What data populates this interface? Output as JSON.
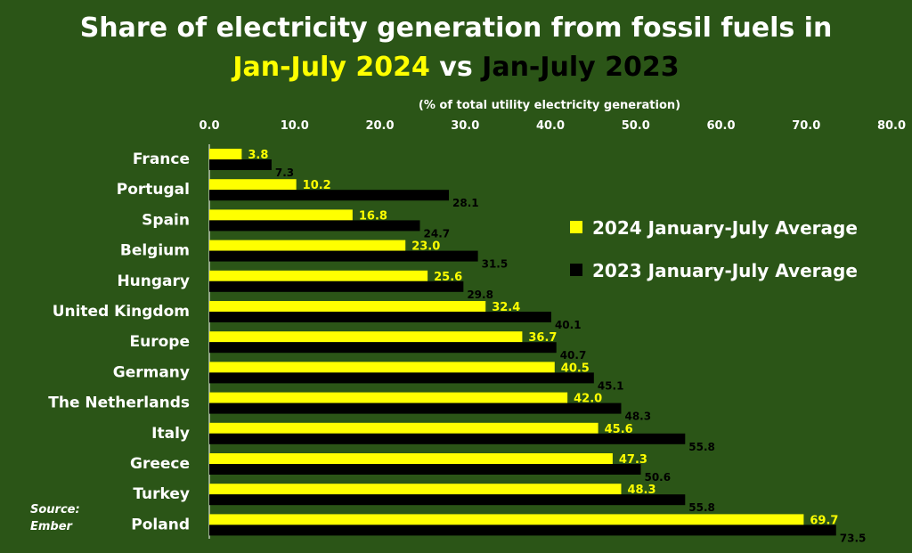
{
  "title": {
    "line1": "Share of electricity generation from fossil fuels in",
    "line2_part1": "Jan-July 2024",
    "line2_part2": " vs ",
    "line2_part3": "Jan-July 2023"
  },
  "source": {
    "line1": "Source:",
    "line2": "Ember"
  },
  "colors": {
    "background": "#2b5517",
    "series_2024": "#ffff00",
    "series_2023": "#000000",
    "text": "#ffffff"
  },
  "chart_data": {
    "type": "bar",
    "orientation": "horizontal",
    "subtitle": "(% of total utility electricity generation)",
    "xlim": [
      0,
      80
    ],
    "x_ticks": [
      "0.0",
      "10.0",
      "20.0",
      "30.0",
      "40.0",
      "50.0",
      "60.0",
      "70.0",
      "80.0"
    ],
    "grid": false,
    "legend_position": "right",
    "categories": [
      "France",
      "Portugal",
      "Spain",
      "Belgium",
      "Hungary",
      "United Kingdom",
      "Europe",
      "Germany",
      "The Netherlands",
      "Italy",
      "Greece",
      "Turkey",
      "Poland"
    ],
    "series": [
      {
        "name": "2024 January-July Average",
        "color": "#ffff00",
        "values": [
          3.8,
          10.2,
          16.8,
          23.0,
          25.6,
          32.4,
          36.7,
          40.5,
          42.0,
          45.6,
          47.3,
          48.3,
          69.7
        ],
        "labels": [
          "3.8",
          "10.2",
          "16.8",
          "23.0",
          "25.6",
          "32.4",
          "36.7",
          "40.5",
          "42.0",
          "45.6",
          "47.3",
          "48.3",
          "69.7"
        ]
      },
      {
        "name": "2023 January-July Average",
        "color": "#000000",
        "values": [
          7.3,
          28.1,
          24.7,
          31.5,
          29.8,
          40.1,
          40.7,
          45.1,
          48.3,
          55.8,
          50.6,
          55.8,
          73.5
        ],
        "labels": [
          "7.3",
          "28.1",
          "24.7",
          "31.5",
          "29.8",
          "40.1",
          "40.7",
          "45.1",
          "48.3",
          "55.8",
          "50.6",
          "55.8",
          "73.5"
        ]
      }
    ]
  }
}
